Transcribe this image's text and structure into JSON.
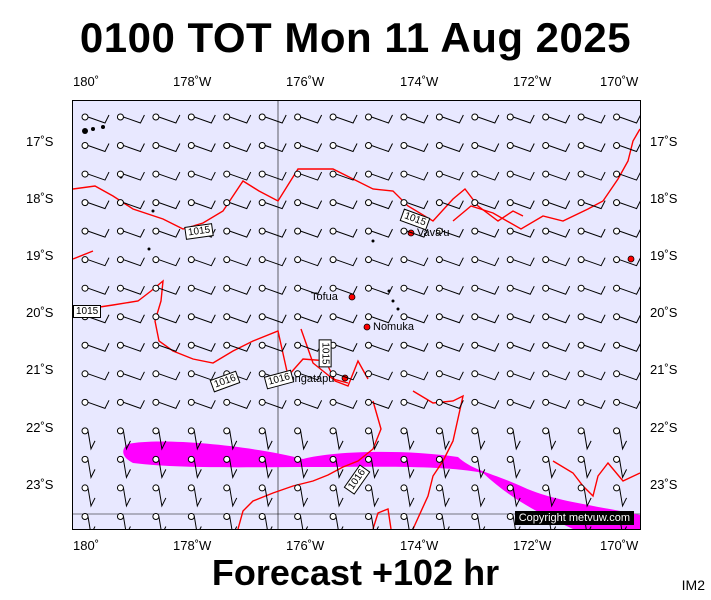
{
  "title": "0100 TOT Mon 11 Aug 2025",
  "footer": "Forecast +102 hr",
  "image_tag": "IM2",
  "copyright": "Copyright metvuw.com",
  "axes": {
    "lon_labels": [
      "180˚",
      "178˚W",
      "176˚W",
      "174˚W",
      "172˚W",
      "170˚W"
    ],
    "lat_labels": [
      "17˚S",
      "18˚S",
      "19˚S",
      "20˚S",
      "21˚S",
      "22˚S",
      "23˚S"
    ]
  },
  "places": [
    {
      "name": "Vava'u"
    },
    {
      "name": "Tofua"
    },
    {
      "name": "Nomuka"
    },
    {
      "name": "Tongatapu"
    }
  ],
  "isobar_labels": [
    "1015",
    "1015",
    "1015",
    "1016",
    "1016",
    "1015",
    "1016",
    "1015"
  ],
  "colors": {
    "map_background": "#e8e8ff",
    "isobar": "#ff0000",
    "rain_band": "#ff00ff",
    "wind_barb": "#000000"
  }
}
